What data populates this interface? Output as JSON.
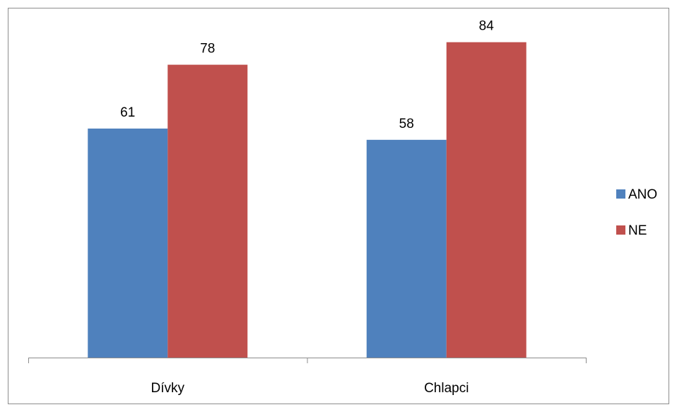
{
  "chart_data": {
    "type": "bar",
    "title": "",
    "xlabel": "",
    "ylabel": "",
    "categories": [
      "Dívky",
      "Chlapci"
    ],
    "series": [
      {
        "name": "ANO",
        "values": [
          61,
          58
        ],
        "color": "#4F81BD"
      },
      {
        "name": "NE",
        "values": [
          78,
          84
        ],
        "color": "#C0504D"
      }
    ],
    "ylim": [
      0,
      100
    ],
    "grid": false,
    "legend_position": "right",
    "data_labels": true
  }
}
